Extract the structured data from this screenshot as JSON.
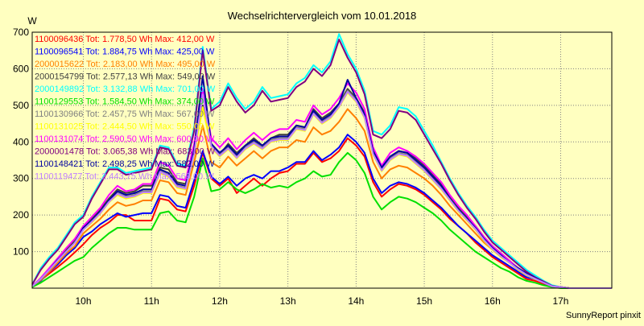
{
  "chart_data": {
    "type": "line",
    "title": "Wechselrichtervergleich vom 10.01.2018",
    "ylabel": "W",
    "footer": "SunnyReport pinxit",
    "ylim": [
      0,
      700
    ],
    "yticks": [
      100,
      200,
      300,
      400,
      500,
      600,
      700
    ],
    "xlim": [
      9.25,
      17.75
    ],
    "xticks": [
      {
        "v": 10,
        "label": "10h"
      },
      {
        "v": 11,
        "label": "11h"
      },
      {
        "v": 12,
        "label": "12h"
      },
      {
        "v": 13,
        "label": "13h"
      },
      {
        "v": 14,
        "label": "14h"
      },
      {
        "v": 15,
        "label": "15h"
      },
      {
        "v": 16,
        "label": "16h"
      },
      {
        "v": 17,
        "label": "17h"
      }
    ],
    "x": [
      9.25,
      9.375,
      9.5,
      9.625,
      9.75,
      9.875,
      10,
      10.125,
      10.25,
      10.375,
      10.5,
      10.625,
      10.75,
      10.875,
      11,
      11.125,
      11.25,
      11.375,
      11.5,
      11.625,
      11.75,
      11.875,
      12,
      12.125,
      12.25,
      12.375,
      12.5,
      12.625,
      12.75,
      12.875,
      13,
      13.125,
      13.25,
      13.375,
      13.5,
      13.625,
      13.75,
      13.875,
      14,
      14.125,
      14.25,
      14.375,
      14.5,
      14.625,
      14.75,
      14.875,
      15,
      15.125,
      15.25,
      15.375,
      15.5,
      15.625,
      15.75,
      15.875,
      16,
      16.125,
      16.25,
      16.375,
      16.5,
      16.625,
      16.75,
      16.875,
      17,
      17.125,
      17.25,
      17.375,
      17.5,
      17.625,
      17.75
    ],
    "series": [
      {
        "name": "1100096436 Tot: 1.778,50 Wh Max: 412,00 W",
        "color": "#ff0000",
        "values": [
          5,
          22,
          40,
          58,
          77,
          98,
          120,
          145,
          165,
          180,
          200,
          200,
          185,
          185,
          185,
          245,
          240,
          215,
          210,
          280,
          370,
          300,
          280,
          300,
          260,
          280,
          300,
          280,
          300,
          315,
          320,
          340,
          340,
          370,
          345,
          355,
          375,
          410,
          390,
          360,
          290,
          250,
          270,
          285,
          280,
          270,
          255,
          235,
          215,
          190,
          170,
          150,
          125,
          105,
          85,
          70,
          55,
          40,
          25,
          20,
          12,
          5,
          3,
          0,
          0,
          0,
          0,
          0,
          0
        ]
      },
      {
        "name": "1100096541 Tot: 1.884,75 Wh Max: 425,00 W",
        "color": "#0000ff",
        "values": [
          5,
          20,
          45,
          65,
          90,
          110,
          140,
          155,
          175,
          190,
          205,
          195,
          200,
          205,
          205,
          255,
          250,
          225,
          220,
          295,
          375,
          305,
          285,
          305,
          280,
          300,
          310,
          300,
          320,
          320,
          330,
          345,
          345,
          375,
          350,
          365,
          385,
          420,
          400,
          370,
          300,
          260,
          280,
          290,
          285,
          275,
          260,
          240,
          220,
          195,
          170,
          150,
          130,
          110,
          90,
          75,
          60,
          45,
          30,
          25,
          15,
          5,
          3,
          0,
          0,
          0,
          0,
          0,
          0
        ]
      },
      {
        "name": "2000015622 Tot: 2.183,00 Wh Max: 495,00 W",
        "color": "#ff8000",
        "values": [
          5,
          22,
          45,
          70,
          95,
          115,
          150,
          170,
          190,
          215,
          235,
          225,
          230,
          240,
          240,
          295,
          290,
          260,
          255,
          345,
          445,
          345,
          330,
          360,
          335,
          355,
          375,
          355,
          375,
          385,
          385,
          405,
          400,
          440,
          420,
          430,
          455,
          490,
          465,
          430,
          345,
          300,
          325,
          335,
          330,
          315,
          300,
          280,
          255,
          225,
          200,
          175,
          150,
          125,
          105,
          85,
          70,
          50,
          35,
          25,
          15,
          5,
          3,
          0,
          0,
          0,
          0,
          0,
          0
        ]
      },
      {
        "name": "2000154799 Tot: 2.577,13 Wh Max: 549,00 W",
        "color": "#404040",
        "values": [
          5,
          25,
          50,
          80,
          105,
          130,
          170,
          190,
          215,
          245,
          270,
          260,
          265,
          280,
          280,
          330,
          325,
          290,
          285,
          380,
          500,
          390,
          365,
          395,
          370,
          390,
          410,
          390,
          410,
          420,
          420,
          445,
          440,
          490,
          465,
          480,
          505,
          545,
          520,
          480,
          380,
          330,
          360,
          375,
          370,
          355,
          335,
          310,
          285,
          250,
          220,
          195,
          170,
          140,
          115,
          95,
          75,
          55,
          40,
          30,
          15,
          5,
          3,
          0,
          0,
          0,
          0,
          0,
          0
        ]
      },
      {
        "name": "2000149892 Tot: 3.132,88 Wh Max: 701,00 W",
        "color": "#00ffff",
        "values": [
          10,
          55,
          85,
          110,
          145,
          180,
          200,
          250,
          290,
          330,
          330,
          315,
          320,
          325,
          330,
          390,
          385,
          340,
          335,
          440,
          660,
          490,
          510,
          560,
          520,
          490,
          510,
          550,
          520,
          525,
          530,
          560,
          575,
          610,
          590,
          620,
          695,
          640,
          600,
          540,
          430,
          420,
          445,
          495,
          490,
          470,
          430,
          390,
          345,
          300,
          260,
          225,
          195,
          160,
          130,
          110,
          90,
          70,
          50,
          35,
          20,
          8,
          3,
          0,
          0,
          0,
          0,
          0,
          0
        ]
      },
      {
        "name": "1100129553 Tot: 1.584,50 Wh Max: 374,00 W",
        "color": "#00e000",
        "values": [
          3,
          15,
          30,
          45,
          60,
          75,
          85,
          110,
          130,
          150,
          165,
          165,
          160,
          160,
          160,
          205,
          210,
          185,
          180,
          250,
          355,
          265,
          270,
          290,
          270,
          260,
          270,
          285,
          275,
          280,
          275,
          290,
          300,
          320,
          305,
          310,
          345,
          370,
          350,
          315,
          250,
          215,
          235,
          250,
          245,
          235,
          220,
          205,
          185,
          160,
          140,
          120,
          100,
          85,
          70,
          55,
          45,
          30,
          20,
          15,
          8,
          3,
          0,
          0,
          0,
          0,
          0,
          0,
          0
        ]
      },
      {
        "name": "1100130966 Tot: 2.457,75 Wh Max: 567,00 W",
        "color": "#808080",
        "values": [
          5,
          25,
          50,
          78,
          100,
          125,
          160,
          180,
          205,
          235,
          260,
          250,
          255,
          265,
          265,
          320,
          310,
          280,
          275,
          370,
          540,
          390,
          365,
          385,
          360,
          385,
          400,
          385,
          405,
          410,
          410,
          440,
          435,
          480,
          455,
          470,
          500,
          540,
          515,
          470,
          370,
          325,
          355,
          370,
          365,
          345,
          325,
          300,
          275,
          245,
          215,
          190,
          165,
          135,
          110,
          90,
          70,
          55,
          40,
          28,
          15,
          5,
          3,
          0,
          0,
          0,
          0,
          0,
          0
        ]
      },
      {
        "name": "1100131025 Tot: 2.444,50 Wh Max: 550,00 W",
        "color": "#ffff00",
        "values": [
          5,
          25,
          50,
          75,
          100,
          125,
          160,
          180,
          205,
          235,
          255,
          245,
          250,
          260,
          260,
          315,
          305,
          275,
          270,
          365,
          495,
          385,
          360,
          380,
          355,
          380,
          395,
          380,
          400,
          405,
          405,
          435,
          430,
          475,
          450,
          465,
          495,
          535,
          510,
          465,
          365,
          320,
          350,
          365,
          360,
          340,
          320,
          295,
          270,
          240,
          210,
          185,
          160,
          130,
          105,
          85,
          70,
          50,
          35,
          25,
          15,
          5,
          3,
          0,
          0,
          0,
          0,
          0,
          0
        ]
      },
      {
        "name": "1100131074 Tot: 2.590,50 Wh Max: 600,00 W",
        "color": "#ff00ff",
        "values": [
          5,
          28,
          55,
          82,
          110,
          135,
          170,
          195,
          220,
          255,
          280,
          265,
          270,
          285,
          285,
          345,
          335,
          300,
          295,
          395,
          545,
          410,
          385,
          410,
          380,
          405,
          425,
          405,
          425,
          435,
          435,
          460,
          455,
          500,
          475,
          490,
          520,
          560,
          535,
          490,
          385,
          335,
          370,
          385,
          375,
          360,
          340,
          315,
          290,
          255,
          225,
          200,
          170,
          140,
          115,
          95,
          75,
          55,
          40,
          28,
          15,
          5,
          3,
          0,
          0,
          0,
          0,
          0,
          0
        ]
      },
      {
        "name": "2000001478 Tot: 3.065,38 Wh Max: 683,00 W",
        "color": "#800080",
        "values": [
          10,
          50,
          80,
          105,
          140,
          175,
          195,
          245,
          285,
          325,
          325,
          310,
          315,
          320,
          325,
          385,
          380,
          335,
          330,
          430,
          650,
          485,
          500,
          550,
          510,
          480,
          500,
          540,
          510,
          515,
          520,
          550,
          565,
          600,
          580,
          610,
          680,
          630,
          590,
          530,
          420,
          410,
          435,
          485,
          480,
          460,
          420,
          380,
          340,
          295,
          255,
          220,
          190,
          155,
          125,
          105,
          85,
          65,
          45,
          30,
          18,
          6,
          3,
          0,
          0,
          0,
          0,
          0,
          0
        ]
      },
      {
        "name": "1100148421 Tot: 2.498,25 Wh Max: 582,00 W",
        "color": "#0000a0",
        "values": [
          5,
          25,
          50,
          78,
          100,
          125,
          165,
          185,
          210,
          240,
          265,
          255,
          260,
          270,
          270,
          325,
          315,
          285,
          280,
          380,
          580,
          395,
          370,
          390,
          365,
          390,
          405,
          390,
          410,
          415,
          415,
          445,
          440,
          485,
          460,
          475,
          505,
          570,
          520,
          475,
          375,
          330,
          360,
          375,
          370,
          350,
          330,
          305,
          280,
          245,
          215,
          190,
          165,
          135,
          110,
          90,
          70,
          55,
          40,
          28,
          15,
          5,
          3,
          0,
          0,
          0,
          0,
          0,
          0
        ]
      },
      {
        "name": "1100119477 Tot: 2.443,75 Wh Max: 569,00 W",
        "color": "#c080ff",
        "values": [
          5,
          25,
          50,
          76,
          100,
          124,
          160,
          182,
          206,
          236,
          258,
          248,
          252,
          262,
          262,
          318,
          308,
          278,
          272,
          368,
          530,
          388,
          362,
          382,
          357,
          382,
          397,
          382,
          402,
          407,
          407,
          437,
          432,
          477,
          452,
          467,
          497,
          537,
          512,
          467,
          367,
          322,
          352,
          367,
          362,
          342,
          322,
          297,
          272,
          242,
          212,
          187,
          162,
          132,
          107,
          87,
          70,
          52,
          37,
          26,
          15,
          5,
          3,
          0,
          0,
          0,
          0,
          0,
          0
        ]
      }
    ]
  }
}
